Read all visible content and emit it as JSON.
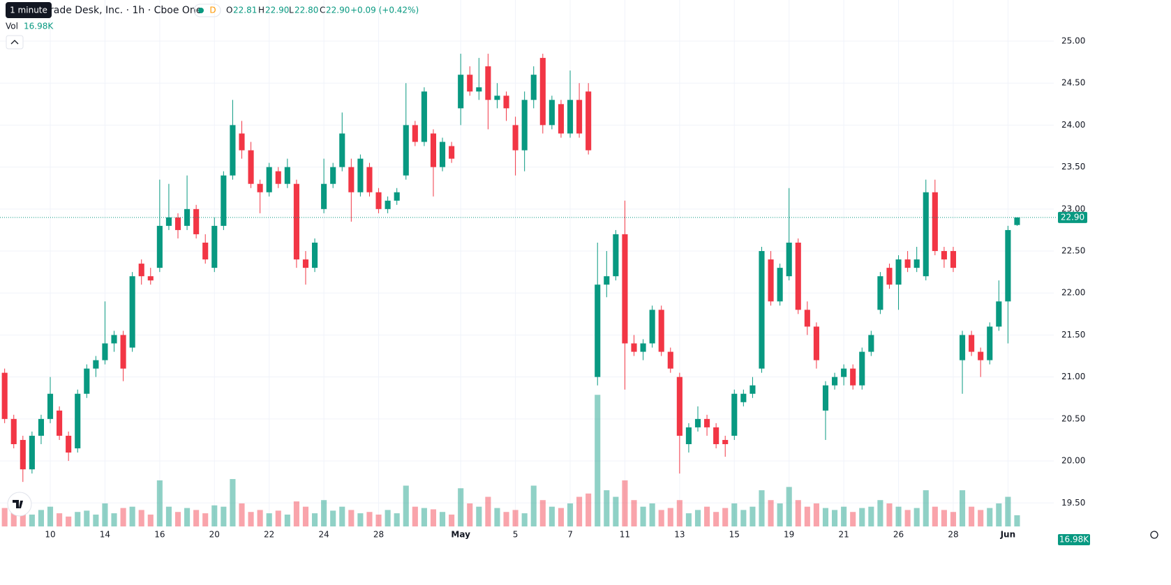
{
  "header": {
    "tooltip": "1 minute",
    "title": "The Trade Desk, Inc. · 1h · Cboe One",
    "badge": "D",
    "o_label": "O",
    "o": "22.81",
    "h_label": "H",
    "h": "22.90",
    "l_label": "L",
    "l": "22.80",
    "c_label": "C",
    "c": "22.90",
    "change": "+0.09 (+0.42%)",
    "vol_label": "Vol",
    "vol": "16.98K"
  },
  "chart_data": {
    "type": "candlestick",
    "up_color": "#089981",
    "down_color": "#f23645",
    "grid": true,
    "xlim": [
      -0.51,
      115.02
    ],
    "ylim": [
      19.22,
      25.49
    ],
    "vlim": [
      0,
      800
    ],
    "xticks": [
      {
        "value": 5,
        "label": "10"
      },
      {
        "value": 11,
        "label": "14"
      },
      {
        "value": 17,
        "label": "16"
      },
      {
        "value": 23,
        "label": "20"
      },
      {
        "value": 29,
        "label": "22"
      },
      {
        "value": 35,
        "label": "24"
      },
      {
        "value": 41,
        "label": "28"
      },
      {
        "value": 50,
        "label": "May"
      },
      {
        "value": 56,
        "label": "5"
      },
      {
        "value": 62,
        "label": "7"
      },
      {
        "value": 68,
        "label": "11"
      },
      {
        "value": 74,
        "label": "13"
      },
      {
        "value": 80,
        "label": "15"
      },
      {
        "value": 86,
        "label": "19"
      },
      {
        "value": 92,
        "label": "21"
      },
      {
        "value": 98,
        "label": "26"
      },
      {
        "value": 104,
        "label": "28"
      },
      {
        "value": 110,
        "label": "Jun"
      }
    ],
    "yticks": [
      {
        "value": 19.5,
        "label": "19.50"
      },
      {
        "value": 20,
        "label": "20.00"
      },
      {
        "value": 20.5,
        "label": "20.50"
      },
      {
        "value": 21,
        "label": "21.00"
      },
      {
        "value": 21.5,
        "label": "21.50"
      },
      {
        "value": 22,
        "label": "22.00"
      },
      {
        "value": 22.5,
        "label": "22.50"
      },
      {
        "value": 23,
        "label": "23.00"
      },
      {
        "value": 23.5,
        "label": "23.50"
      },
      {
        "value": 24,
        "label": "24.00"
      },
      {
        "value": 24.5,
        "label": "24.50"
      },
      {
        "value": 25,
        "label": "25.00"
      }
    ],
    "last_price": {
      "value": 22.9,
      "label": "22.90"
    },
    "open": [
      21.05,
      20.5,
      20.25,
      19.9,
      20.3,
      20.5,
      20.6,
      20.3,
      20.15,
      20.8,
      21.1,
      21.2,
      21.4,
      21.5,
      21.35,
      22.35,
      22.2,
      22.3,
      22.8,
      22.9,
      22.8,
      23.0,
      22.6,
      22.3,
      22.8,
      23.4,
      23.9,
      23.7,
      23.3,
      23.2,
      23.45,
      23.3,
      23.3,
      22.4,
      22.3,
      23.0,
      23.3,
      23.5,
      23.5,
      23.2,
      23.5,
      23.2,
      23.0,
      23.1,
      23.4,
      24.0,
      23.8,
      23.9,
      23.5,
      23.75,
      24.2,
      24.6,
      24.4,
      24.7,
      24.3,
      24.35,
      24.0,
      23.7,
      24.3,
      24.8,
      24.0,
      24.25,
      23.9,
      24.3,
      24.4,
      21.0,
      22.1,
      22.2,
      22.7,
      21.4,
      21.3,
      21.4,
      21.8,
      21.3,
      21.0,
      20.2,
      20.4,
      20.5,
      20.4,
      20.25,
      20.3,
      20.7,
      20.8,
      21.1,
      22.4,
      21.9,
      22.2,
      22.6,
      21.8,
      21.6,
      20.6,
      20.9,
      21.0,
      21.1,
      20.9,
      21.3,
      21.8,
      22.3,
      22.1,
      22.4,
      22.3,
      22.2,
      23.2,
      22.5,
      22.5,
      21.2,
      21.5,
      21.3,
      21.2,
      21.6,
      21.9,
      22.81
    ],
    "high": [
      21.1,
      20.55,
      20.3,
      20.35,
      20.55,
      21.0,
      20.65,
      20.35,
      20.85,
      21.15,
      21.25,
      21.9,
      21.55,
      21.55,
      22.25,
      22.4,
      22.3,
      23.35,
      23.3,
      22.95,
      23.4,
      23.05,
      22.7,
      22.9,
      23.45,
      24.3,
      24.05,
      23.8,
      23.35,
      23.55,
      23.5,
      23.6,
      23.35,
      22.5,
      22.65,
      23.6,
      23.55,
      24.15,
      23.6,
      23.65,
      23.55,
      23.25,
      23.15,
      23.25,
      24.5,
      24.05,
      24.45,
      23.95,
      23.85,
      23.8,
      24.85,
      24.7,
      24.8,
      24.85,
      24.5,
      24.4,
      24.1,
      24.4,
      24.7,
      24.85,
      24.35,
      24.3,
      24.65,
      24.5,
      24.5,
      22.6,
      22.5,
      22.75,
      23.1,
      21.5,
      21.45,
      21.85,
      21.85,
      21.35,
      21.05,
      20.45,
      20.65,
      20.55,
      20.45,
      20.3,
      20.85,
      20.85,
      21.0,
      22.55,
      22.5,
      22.35,
      23.25,
      22.65,
      21.9,
      21.65,
      20.95,
      21.05,
      21.15,
      21.15,
      21.35,
      21.55,
      22.25,
      22.35,
      22.45,
      22.5,
      22.55,
      23.35,
      23.35,
      22.55,
      22.55,
      21.55,
      21.55,
      21.35,
      21.65,
      22.15,
      22.8,
      22.9
    ],
    "low": [
      20.45,
      20.15,
      19.75,
      19.85,
      20.2,
      20.45,
      20.25,
      20.0,
      20.1,
      20.75,
      21.0,
      21.15,
      21.3,
      20.95,
      21.3,
      22.1,
      22.1,
      22.25,
      22.75,
      22.65,
      22.75,
      22.65,
      22.35,
      22.25,
      22.75,
      23.35,
      23.6,
      23.25,
      22.95,
      23.15,
      23.25,
      23.25,
      22.3,
      22.1,
      22.25,
      22.95,
      23.25,
      23.45,
      22.85,
      23.15,
      23.15,
      22.95,
      22.95,
      23.05,
      23.35,
      23.75,
      23.75,
      23.15,
      23.45,
      23.55,
      24.0,
      24.35,
      24.3,
      23.95,
      24.2,
      24.05,
      23.4,
      23.45,
      24.2,
      23.9,
      23.95,
      23.85,
      23.85,
      23.85,
      23.65,
      20.9,
      21.95,
      22.15,
      20.85,
      21.25,
      21.2,
      21.35,
      21.25,
      21.05,
      19.85,
      20.1,
      20.35,
      20.3,
      20.15,
      20.05,
      20.25,
      20.65,
      20.75,
      21.05,
      21.85,
      21.85,
      22.15,
      21.75,
      21.5,
      21.1,
      20.25,
      20.85,
      20.9,
      20.85,
      20.85,
      21.25,
      21.75,
      22.05,
      21.8,
      22.25,
      22.25,
      22.15,
      22.45,
      22.3,
      22.25,
      20.8,
      21.25,
      21.0,
      21.15,
      21.55,
      21.4,
      22.8
    ],
    "close": [
      20.5,
      20.2,
      19.9,
      20.3,
      20.5,
      20.8,
      20.3,
      20.1,
      20.8,
      21.1,
      21.2,
      21.4,
      21.5,
      21.1,
      22.2,
      22.2,
      22.15,
      22.8,
      22.9,
      22.75,
      23.0,
      22.7,
      22.4,
      22.8,
      23.4,
      24.0,
      23.7,
      23.3,
      23.2,
      23.5,
      23.3,
      23.5,
      22.4,
      22.3,
      22.6,
      23.3,
      23.5,
      23.9,
      23.2,
      23.6,
      23.2,
      23.0,
      23.1,
      23.2,
      24.0,
      23.8,
      24.4,
      23.5,
      23.8,
      23.6,
      24.6,
      24.4,
      24.45,
      24.3,
      24.35,
      24.2,
      23.7,
      24.3,
      24.6,
      24.0,
      24.3,
      23.9,
      24.3,
      23.9,
      23.7,
      22.1,
      22.2,
      22.7,
      21.4,
      21.3,
      21.4,
      21.8,
      21.3,
      21.1,
      20.3,
      20.4,
      20.5,
      20.4,
      20.2,
      20.2,
      20.8,
      20.8,
      20.9,
      22.5,
      21.9,
      22.3,
      22.6,
      21.8,
      21.6,
      21.2,
      20.9,
      21.0,
      21.1,
      20.9,
      21.3,
      21.5,
      22.2,
      22.1,
      22.4,
      22.3,
      22.4,
      23.2,
      22.5,
      22.4,
      22.3,
      21.5,
      21.3,
      21.2,
      21.6,
      21.9,
      22.75,
      22.9
    ],
    "volume": [
      28,
      22,
      20,
      18,
      25,
      30,
      20,
      15,
      22,
      24,
      18,
      35,
      20,
      28,
      30,
      25,
      18,
      70,
      30,
      22,
      28,
      25,
      20,
      32,
      30,
      72,
      35,
      22,
      25,
      20,
      24,
      18,
      38,
      30,
      20,
      40,
      24,
      30,
      25,
      20,
      22,
      18,
      25,
      20,
      62,
      30,
      28,
      26,
      22,
      18,
      58,
      35,
      30,
      45,
      28,
      22,
      25,
      20,
      62,
      40,
      30,
      28,
      35,
      45,
      50,
      200,
      55,
      45,
      70,
      40,
      30,
      35,
      25,
      28,
      40,
      20,
      25,
      30,
      22,
      28,
      35,
      25,
      30,
      55,
      40,
      35,
      60,
      40,
      30,
      35,
      28,
      25,
      30,
      22,
      28,
      30,
      40,
      35,
      30,
      25,
      28,
      55,
      30,
      25,
      22,
      55,
      30,
      25,
      28,
      35,
      45,
      16.98
    ]
  }
}
